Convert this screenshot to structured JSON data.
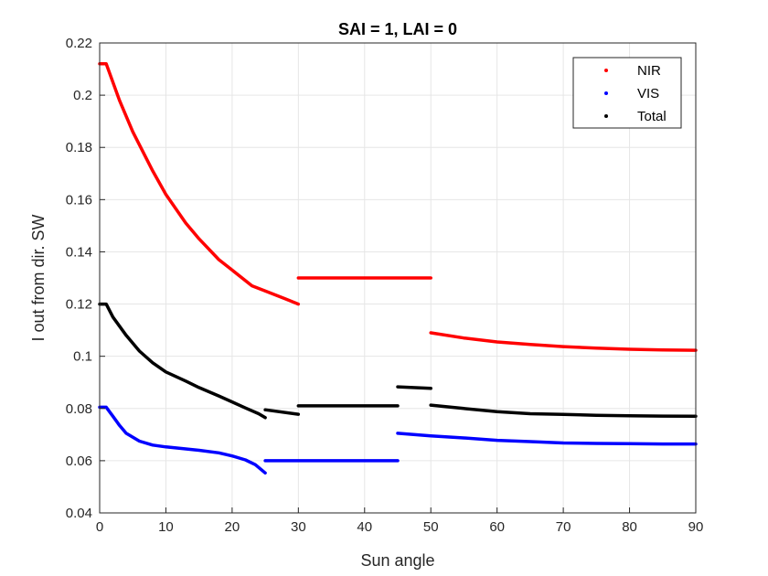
{
  "chart_data": {
    "type": "line",
    "title": "SAI = 1, LAI = 0",
    "xlabel": "Sun angle",
    "ylabel": "I out from dir. SW",
    "xlim": [
      0,
      90
    ],
    "ylim": [
      0.04,
      0.22
    ],
    "xticks": [
      0,
      10,
      20,
      30,
      40,
      50,
      60,
      70,
      80,
      90
    ],
    "yticks": [
      0.04,
      0.06,
      0.08,
      0.1,
      0.12,
      0.14,
      0.16,
      0.18,
      0.2,
      0.22
    ],
    "ytick_labels": [
      "0.04",
      "0.06",
      "0.08",
      "0.1",
      "0.12",
      "0.14",
      "0.16",
      "0.18",
      "0.2",
      "0.22"
    ],
    "grid": true,
    "legend_position": "top-right",
    "series": [
      {
        "name": "NIR",
        "color": "#ff0000",
        "segments": [
          [
            [
              0,
              0.212
            ],
            [
              1,
              0.212
            ],
            [
              3,
              0.198
            ],
            [
              5,
              0.186
            ],
            [
              8,
              0.171
            ],
            [
              10,
              0.162
            ],
            [
              13,
              0.151
            ],
            [
              15,
              0.145
            ],
            [
              18,
              0.137
            ],
            [
              20,
              0.133
            ],
            [
              23,
              0.127
            ],
            [
              25,
              0.125
            ],
            [
              28,
              0.122
            ],
            [
              30,
              0.12
            ]
          ],
          [
            [
              30,
              0.13
            ],
            [
              50,
              0.13
            ]
          ],
          [
            [
              50,
              0.109
            ],
            [
              55,
              0.107
            ],
            [
              60,
              0.1055
            ],
            [
              65,
              0.1045
            ],
            [
              70,
              0.1037
            ],
            [
              75,
              0.1031
            ],
            [
              80,
              0.1027
            ],
            [
              85,
              0.1024
            ],
            [
              90,
              0.1023
            ]
          ]
        ]
      },
      {
        "name": "VIS",
        "color": "#0000ff",
        "segments": [
          [
            [
              0,
              0.0805
            ],
            [
              1,
              0.0805
            ],
            [
              2,
              0.077
            ],
            [
              3,
              0.0735
            ],
            [
              4,
              0.0705
            ],
            [
              6,
              0.0675
            ],
            [
              8,
              0.066
            ],
            [
              10,
              0.0653
            ],
            [
              13,
              0.0645
            ],
            [
              15,
              0.064
            ],
            [
              18,
              0.063
            ],
            [
              20,
              0.0618
            ],
            [
              22,
              0.0603
            ],
            [
              23.5,
              0.0585
            ],
            [
              25,
              0.0553
            ]
          ],
          [
            [
              25,
              0.06
            ],
            [
              45,
              0.06
            ]
          ],
          [
            [
              45,
              0.0705
            ],
            [
              50,
              0.0695
            ],
            [
              55,
              0.0687
            ],
            [
              60,
              0.0678
            ],
            [
              65,
              0.0673
            ],
            [
              70,
              0.0668
            ],
            [
              75,
              0.0666
            ],
            [
              80,
              0.0665
            ],
            [
              85,
              0.0664
            ],
            [
              90,
              0.0664
            ]
          ]
        ]
      },
      {
        "name": "Total",
        "color": "#000000",
        "segments": [
          [
            [
              0,
              0.12
            ],
            [
              1,
              0.12
            ],
            [
              2,
              0.115
            ],
            [
              4,
              0.108
            ],
            [
              6,
              0.102
            ],
            [
              8,
              0.0975
            ],
            [
              10,
              0.094
            ],
            [
              13,
              0.0905
            ],
            [
              15,
              0.088
            ],
            [
              18,
              0.0848
            ],
            [
              20,
              0.0825
            ],
            [
              22,
              0.0802
            ],
            [
              24,
              0.078
            ],
            [
              25,
              0.0765
            ]
          ],
          [
            [
              25,
              0.0795
            ],
            [
              30,
              0.0778
            ]
          ],
          [
            [
              30,
              0.081
            ],
            [
              45,
              0.081
            ]
          ],
          [
            [
              45,
              0.0883
            ],
            [
              50,
              0.0877
            ]
          ],
          [
            [
              50,
              0.0813
            ],
            [
              55,
              0.08
            ],
            [
              60,
              0.0788
            ],
            [
              65,
              0.078
            ],
            [
              70,
              0.0777
            ],
            [
              75,
              0.0774
            ],
            [
              80,
              0.0772
            ],
            [
              85,
              0.0771
            ],
            [
              90,
              0.077
            ]
          ]
        ]
      }
    ]
  }
}
